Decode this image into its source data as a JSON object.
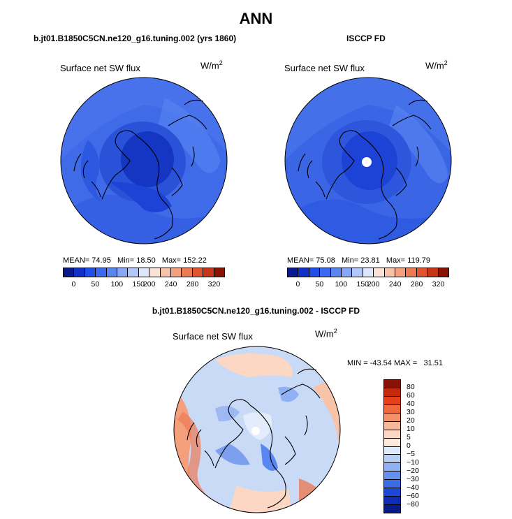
{
  "main_title": "ANN",
  "panels": [
    {
      "title": "b.jt01.B1850C5CN.ne120_g16.tuning.002 (yrs 1860)",
      "variable": "Surface net SW flux",
      "units_base": "W/m",
      "units_exp": "2",
      "stats": {
        "mean_label": "MEAN=",
        "mean": "74.95",
        "min_label": "Min=",
        "min": "18.50",
        "max_label": "Max=",
        "max": "152.22"
      }
    },
    {
      "title": "ISCCP FD",
      "variable": "Surface net SW flux",
      "units_base": "W/m",
      "units_exp": "2",
      "stats": {
        "mean_label": "MEAN=",
        "mean": "75.08",
        "min_label": "Min=",
        "min": "23.81",
        "max_label": "Max=",
        "max": "119.79"
      }
    }
  ],
  "diff_panel": {
    "title": "b.jt01.B1850C5CN.ne120_g16.tuning.002 - ISCCP FD",
    "variable": "Surface net SW flux",
    "units_base": "W/m",
    "units_exp": "2",
    "stats": {
      "min_label": "MIN =",
      "min": "-43.54",
      "max_label": "MAX =",
      "max": "31.51"
    }
  },
  "colorbar_abs": {
    "ticks": [
      "0",
      "50",
      "100",
      "150",
      "200",
      "240",
      "280",
      "320"
    ],
    "colors": [
      "#0a1a8c",
      "#1230c8",
      "#1f4fe6",
      "#3a6af0",
      "#5a86f2",
      "#86a8f5",
      "#b3c8f8",
      "#dde6fb",
      "#fbe2d6",
      "#f7c3a8",
      "#f2a07e",
      "#ec7a55",
      "#e0542f",
      "#c83516",
      "#8a1204"
    ]
  },
  "colorbar_diff": {
    "ticks": [
      "80",
      "60",
      "40",
      "30",
      "20",
      "10",
      "5",
      "0",
      "−5",
      "−10",
      "−20",
      "−30",
      "−40",
      "−60",
      "−80"
    ],
    "colors": [
      "#8a1204",
      "#c62a0c",
      "#e5401a",
      "#f0683e",
      "#f2916a",
      "#f6b89a",
      "#fbd8c5",
      "#fde9dd",
      "#dce8fb",
      "#b8cef6",
      "#8fb0f2",
      "#6490ee",
      "#3b6ce8",
      "#1c48d8",
      "#0e2cb8",
      "#061a8a"
    ]
  },
  "map_colors": {
    "ocean_dark": "#1c43d6",
    "ocean_mid": "#2d58e2",
    "ocean_light": "#3f6ae8",
    "arctic": "#1436c2",
    "diff_base": "#c9daf7",
    "diff_blue": "#7da0ee",
    "diff_red": "#f4a07c",
    "diff_light": "#fbd7c4"
  }
}
